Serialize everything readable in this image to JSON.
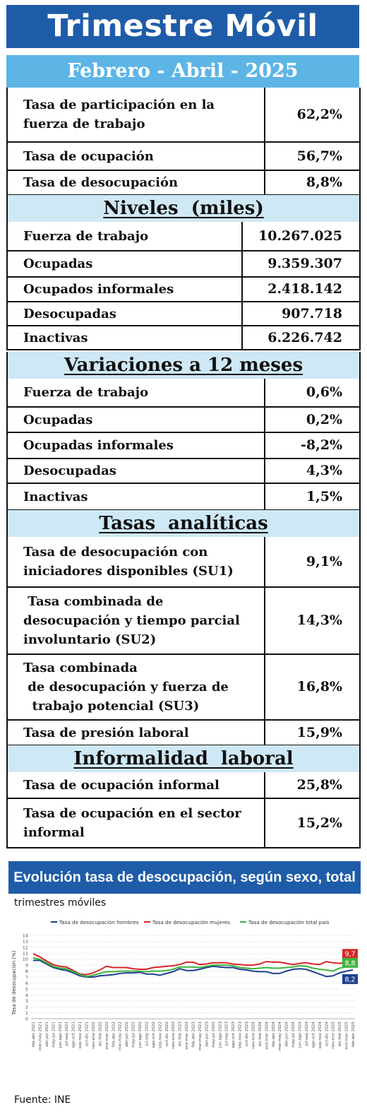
{
  "header": {
    "title": "Trimestre Móvil",
    "period": "Febrero - Abril -  2025"
  },
  "rates": [
    {
      "label_lines": [
        "Tasa de participación en la",
        "fuerza de trabajo"
      ],
      "value": "62,2%"
    },
    {
      "label_lines": [
        "Tasa de ocupación"
      ],
      "value": "56,7%"
    },
    {
      "label_lines": [
        "Tasa de desocupación"
      ],
      "value": "8,8%"
    }
  ],
  "levels": {
    "heading": "Niveles  (miles)",
    "rows": [
      {
        "label": "Fuerza de trabajo",
        "value": "10.267.025"
      },
      {
        "label": "Ocupadas",
        "value": "9.359.307"
      },
      {
        "label": "Ocupados informales",
        "value": "2.418.142"
      },
      {
        "label": "Desocupadas",
        "value": "907.718"
      },
      {
        "label": "Inactivas",
        "value": "6.226.742"
      }
    ]
  },
  "variations": {
    "heading": "Variaciones a 12 meses",
    "rows": [
      {
        "label": "Fuerza de trabajo",
        "value": "0,6%"
      },
      {
        "label": "Ocupadas",
        "value": "0,2%"
      },
      {
        "label": "Ocupadas informales",
        "value": "-8,2%"
      },
      {
        "label": "Desocupadas",
        "value": "4,3%"
      },
      {
        "label": "Inactivas",
        "value": "1,5%"
      }
    ]
  },
  "analytic": {
    "heading": "Tasas  analíticas",
    "rows": [
      {
        "label_lines": [
          "Tasa de desocupación con",
          "iniciadores disponibles (SU1)"
        ],
        "value": "9,1%"
      },
      {
        "label_lines": [
          " Tasa combinada de",
          "desocupación y tiempo parcial",
          "involuntario (SU2)"
        ],
        "value": "14,3%"
      },
      {
        "label_lines": [
          "Tasa combinada",
          " de desocupación y fuerza de",
          "  trabajo potencial (SU3)"
        ],
        "value": "16,8%"
      },
      {
        "label_lines": [
          "Tasa de presión laboral"
        ],
        "value": "15,9%"
      }
    ]
  },
  "informality": {
    "heading": "Informalidad  laboral",
    "rows": [
      {
        "label_lines": [
          "Tasa de ocupación informal"
        ],
        "value": "25,8%"
      },
      {
        "label_lines": [
          "Tasa de ocupación en el sector",
          "informal"
        ],
        "value": "15,2%"
      }
    ]
  },
  "chart_banner": "Evolución tasa de desocupación, según sexo, total país",
  "chart_subtitle": "trimestres móviles",
  "source": "Fuente: INE",
  "colors": {
    "hombres": "#1f3f8f",
    "mujeres": "#d62728",
    "total": "#3cb43c",
    "banner": "#1f5ca8",
    "period": "#5db5e6",
    "section": "#cfe8f5"
  },
  "chart_data": {
    "type": "line",
    "ylabel": "Tasa de desocupación (%)",
    "ylim": [
      0,
      14
    ],
    "yticks": [
      0,
      1,
      2,
      3,
      4,
      5,
      6,
      7,
      8,
      9,
      10,
      11,
      12,
      13,
      14
    ],
    "grid": true,
    "legend_position": "top",
    "x": [
      "feb-abr 2021",
      "mar-may 2021",
      "abr-jun 2021",
      "may-jul 2021",
      "jun-ago 2021",
      "jul-sep 2021",
      "ago-oct 2021",
      "sep-nov 2021",
      "oct-dic 2021",
      "nov-ene 2022",
      "dic-feb 2022",
      "ene-mar 2022",
      "feb-abr 2022",
      "mar-may 2022",
      "abr-jun 2022",
      "may-jul 2022",
      "jun-ago 2022",
      "jul-sep 2022",
      "ago-oct 2022",
      "sep-nov 2022",
      "oct-dic 2022",
      "nov-ene 2023",
      "dic-feb 2023",
      "ene-mar 2023",
      "feb-abr 2023",
      "mar-may 2023",
      "abr-jun 2023",
      "may-jul 2023",
      "jun-ago 2023",
      "jul-sep 2023",
      "ago-oct 2023",
      "sep-nov 2023",
      "oct-dic 2023",
      "nov-ene 2024",
      "dic-feb 2024",
      "ene-mar 2024",
      "feb-abr 2024",
      "mar-may 2024",
      "abr-jun 2024",
      "may-jul 2024",
      "jun-ago 2024",
      "jul-sep 2024",
      "ago-oct 2024",
      "sep-nov 2024",
      "oct-dic 2024",
      "nov-ene 2025",
      "dic-feb 2025",
      "ene-mar 2025",
      "feb-abr 2025"
    ],
    "series": [
      {
        "name": "Tasa de desocupación hombres",
        "color": "#1f3f8f",
        "values": [
          9.8,
          9.8,
          9.2,
          8.6,
          8.3,
          8.1,
          7.7,
          7.2,
          7.0,
          7.0,
          7.2,
          7.3,
          7.4,
          7.6,
          7.7,
          7.7,
          7.8,
          7.5,
          7.5,
          7.3,
          7.6,
          7.9,
          8.4,
          8.1,
          8.1,
          8.3,
          8.6,
          8.8,
          8.7,
          8.6,
          8.6,
          8.3,
          8.2,
          8.0,
          7.9,
          7.9,
          7.6,
          7.6,
          8.0,
          8.3,
          8.4,
          8.3,
          7.9,
          7.5,
          7.1,
          7.2,
          7.7,
          8.0,
          8.2
        ]
      },
      {
        "name": "Tasa de desocupación mujeres",
        "color": "#d62728",
        "values": [
          10.9,
          10.4,
          9.7,
          9.1,
          8.8,
          8.7,
          8.1,
          7.5,
          7.4,
          7.7,
          8.2,
          8.8,
          8.6,
          8.6,
          8.6,
          8.4,
          8.3,
          8.3,
          8.6,
          8.7,
          8.8,
          8.9,
          9.1,
          9.5,
          9.5,
          9.1,
          9.2,
          9.4,
          9.4,
          9.4,
          9.2,
          9.1,
          9.0,
          9.0,
          9.2,
          9.6,
          9.5,
          9.5,
          9.3,
          9.1,
          9.3,
          9.4,
          9.2,
          9.1,
          9.6,
          9.4,
          9.3,
          9.5,
          9.7
        ]
      },
      {
        "name": "Tasa de desocupación total país",
        "color": "#3cb43c",
        "values": [
          10.2,
          10.0,
          9.4,
          8.8,
          8.5,
          8.4,
          7.9,
          7.4,
          7.1,
          7.3,
          7.6,
          7.9,
          7.9,
          8.0,
          8.0,
          8.0,
          8.0,
          7.9,
          8.0,
          8.0,
          8.1,
          8.3,
          8.7,
          8.7,
          8.7,
          8.6,
          8.8,
          9.0,
          9.0,
          9.0,
          8.9,
          8.6,
          8.5,
          8.4,
          8.5,
          8.6,
          8.5,
          8.5,
          8.6,
          8.7,
          8.9,
          8.8,
          8.5,
          8.3,
          8.2,
          8.0,
          8.5,
          8.7,
          8.8
        ]
      }
    ],
    "end_labels": [
      "9,7",
      "8,8",
      "8,2"
    ]
  }
}
